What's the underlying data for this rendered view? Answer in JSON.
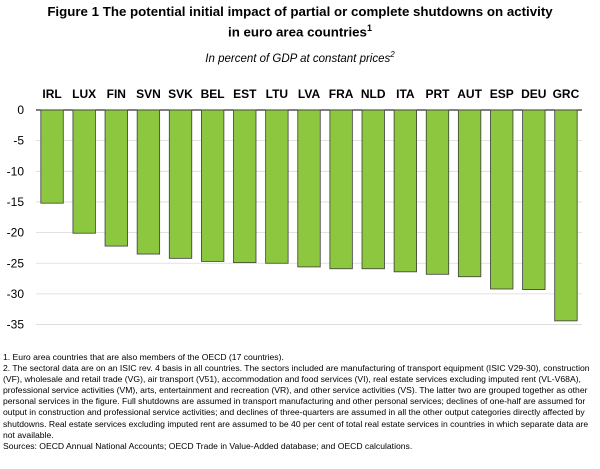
{
  "title": {
    "line1": "Figure 1 The potential initial impact of partial or complete shutdowns on activity",
    "line2": "in euro area countries",
    "footnote_mark": "1"
  },
  "subtitle": {
    "text": "In percent of GDP at constant prices",
    "footnote_mark": "2"
  },
  "notes": [
    "1. Euro area countries that are also members of the OECD (17 countries).",
    "2. The sectoral data are on an ISIC rev. 4 basis in all countries. The sectors included are manufacturing of transport equipment (ISIC V29-30), construction (VF), wholesale and retail trade (VG), air transport (V51), accommodation and food services (VI), real estate services excluding imputed rent (VL-V68A), professional service activities (VM), arts, entertainment and recreation (VR), and other service activities (VS). The latter two are grouped together as other personal services in the figure. Full shutdowns are assumed in transport manufacturing and other personal services; declines of one-half are assumed for output in construction and professional service activities; and declines of three-quarters are assumed in all the other output categories directly affected by shutdowns. Real estate services excluding imputed rent are assumed to be 40 per cent of total real estate services in countries in which separate data are not available."
  ],
  "source": "Sources: OECD Annual National Accounts; OECD Trade in Value-Added database; and OECD calculations.",
  "colors": {
    "bar_fill": "#8dc63f",
    "bar_stroke": "#3d3d3d",
    "grid": "#d9d9d9"
  },
  "chart_data": {
    "type": "bar",
    "categories": [
      "IRL",
      "LUX",
      "FIN",
      "SVN",
      "SVK",
      "BEL",
      "EST",
      "LTU",
      "LVA",
      "FRA",
      "NLD",
      "ITA",
      "PRT",
      "AUT",
      "ESP",
      "DEU",
      "GRC"
    ],
    "values": [
      -15.2,
      -20.1,
      -22.2,
      -23.5,
      -24.2,
      -24.7,
      -24.9,
      -25.0,
      -25.6,
      -25.9,
      -25.9,
      -26.4,
      -26.8,
      -27.2,
      -29.2,
      -29.3,
      -34.4
    ],
    "xlabel": "",
    "ylabel": "",
    "ylim": [
      -35,
      0
    ],
    "yticks": [
      0,
      -5,
      -10,
      -15,
      -20,
      -25,
      -30,
      -35
    ],
    "category_axis_position": "top",
    "grid": true
  }
}
